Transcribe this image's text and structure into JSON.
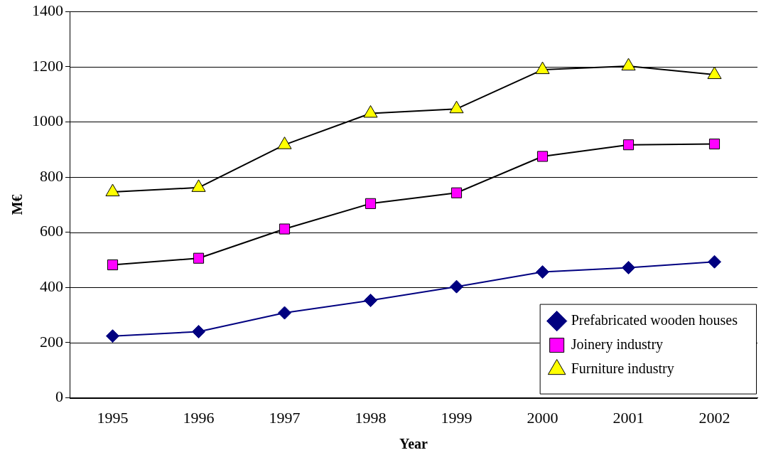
{
  "chart_data": {
    "type": "line",
    "xlabel": "Year",
    "ylabel": "M€",
    "categories": [
      "1995",
      "1996",
      "1997",
      "1998",
      "1999",
      "2000",
      "2001",
      "2002"
    ],
    "series": [
      {
        "name": "Prefabricated wooden houses",
        "color": "#000080",
        "marker": "diamond",
        "values": [
          224,
          240,
          308,
          353,
          403,
          456,
          472,
          493
        ]
      },
      {
        "name": "Joinery industry",
        "color": "#ff00ff",
        "marker": "square",
        "values": [
          482,
          506,
          612,
          704,
          743,
          875,
          917,
          920
        ]
      },
      {
        "name": "Furniture industry",
        "color": "#ffff00",
        "marker": "triangle",
        "values": [
          746,
          762,
          917,
          1031,
          1047,
          1189,
          1202,
          1171
        ]
      }
    ],
    "ylim": [
      0,
      1400
    ],
    "yticks": [
      0,
      200,
      400,
      600,
      800,
      1000,
      1200,
      1400
    ],
    "grid": "y",
    "legend": "bottom right",
    "line_style": "solid"
  }
}
